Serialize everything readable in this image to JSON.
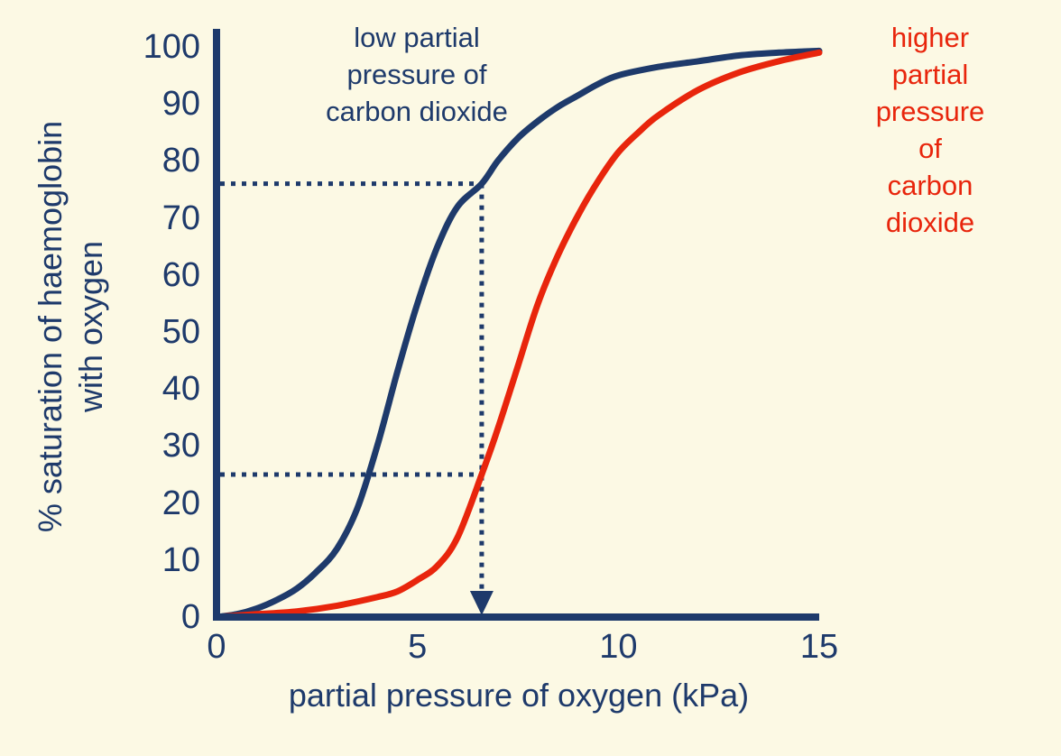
{
  "colors": {
    "navy": "#1e3a6b",
    "red": "#e8250c",
    "background": "#fcf9e4"
  },
  "labels": {
    "y_axis": "% saturation of haemoglobin\nwith oxygen",
    "x_axis": "partial pressure of oxygen (kPa)",
    "blue_curve": "low partial\npressure of\ncarbon dioxide",
    "red_curve": "higher partial\npressure of\ncarbon dioxide"
  },
  "chart_data": {
    "type": "line",
    "title": "",
    "xlabel": "partial pressure of oxygen (kPa)",
    "ylabel": "% saturation of haemoglobin with oxygen",
    "xlim": [
      0,
      15
    ],
    "ylim": [
      0,
      100
    ],
    "xticks": [
      0,
      5,
      10,
      15
    ],
    "yticks": [
      0,
      10,
      20,
      30,
      40,
      50,
      60,
      70,
      80,
      90,
      100
    ],
    "grid": false,
    "legend_position": "none",
    "series": [
      {
        "name": "low partial pressure of carbon dioxide",
        "color": "#1e3a6b",
        "x": [
          0,
          0.5,
          1,
          1.5,
          2,
          2.5,
          3,
          3.5,
          4,
          4.5,
          5,
          5.5,
          6,
          6.6,
          7,
          7.5,
          8,
          8.5,
          9,
          9.5,
          10,
          11,
          12,
          13,
          14,
          15
        ],
        "y": [
          0,
          0.5,
          1.5,
          3,
          5,
          8,
          12,
          19,
          30,
          43,
          55,
          65,
          72,
          76,
          80,
          84,
          87,
          89.5,
          91.5,
          93.5,
          95,
          96.5,
          97.5,
          98.5,
          99,
          99.3
        ]
      },
      {
        "name": "higher partial pressure of carbon dioxide",
        "color": "#e8250c",
        "x": [
          0,
          1,
          2,
          3,
          4,
          4.5,
          5,
          5.5,
          6,
          6.6,
          7,
          7.5,
          8,
          8.5,
          9,
          9.5,
          10,
          10.5,
          11,
          12,
          13,
          14,
          15
        ],
        "y": [
          0,
          0.5,
          1,
          2,
          3.5,
          4.5,
          6.5,
          9,
          14,
          25,
          33,
          44,
          55,
          63.5,
          70.5,
          76.5,
          81.5,
          85,
          88,
          92.5,
          95.5,
          97.5,
          99
        ]
      }
    ],
    "annotations": [
      {
        "type": "h-dotted",
        "y": 76,
        "x_to": 6.6
      },
      {
        "type": "h-dotted",
        "y": 25,
        "x_to": 6.6
      },
      {
        "type": "v-dotted-arrow",
        "x": 6.6,
        "y_from": 76,
        "arrow": "down-to-x-axis"
      }
    ]
  }
}
